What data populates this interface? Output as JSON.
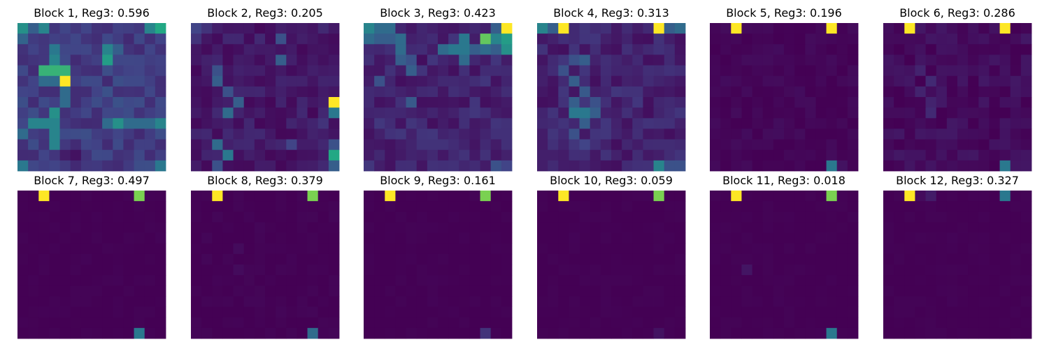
{
  "chart_data": {
    "type": "heatmap",
    "colormap": "viridis",
    "colormap_stops": [
      "#440154",
      "#414487",
      "#2a788e",
      "#22a884",
      "#7ad151",
      "#fde725"
    ],
    "grid_size": [
      14,
      14
    ],
    "axes_visible": false,
    "value_scale": [
      0,
      1
    ],
    "panels": [
      {
        "title": "Block 1, Reg3: 0.596",
        "base": 0.18,
        "variation": 0.06,
        "cells": [
          [
            0,
            0,
            0.5
          ],
          [
            0,
            2,
            0.45
          ],
          [
            0,
            12,
            0.45
          ],
          [
            0,
            13,
            0.6
          ],
          [
            0,
            1,
            0.3
          ],
          [
            1,
            0,
            0.32
          ],
          [
            2,
            3,
            0.4
          ],
          [
            2,
            8,
            0.45
          ],
          [
            3,
            8,
            0.55
          ],
          [
            2,
            9,
            0.3
          ],
          [
            4,
            2,
            0.65
          ],
          [
            4,
            3,
            0.65
          ],
          [
            4,
            4,
            0.65
          ],
          [
            3,
            3,
            0.45
          ],
          [
            5,
            2,
            0.35
          ],
          [
            5,
            4,
            1.0
          ],
          [
            5,
            3,
            0.35
          ],
          [
            6,
            4,
            0.35
          ],
          [
            7,
            4,
            0.35
          ],
          [
            8,
            3,
            0.5
          ],
          [
            9,
            1,
            0.45
          ],
          [
            9,
            2,
            0.45
          ],
          [
            9,
            3,
            0.45
          ],
          [
            9,
            9,
            0.5
          ],
          [
            9,
            8,
            0.35
          ],
          [
            9,
            10,
            0.35
          ],
          [
            9,
            11,
            0.35
          ],
          [
            9,
            12,
            0.35
          ],
          [
            9,
            13,
            0.45
          ],
          [
            10,
            0,
            0.35
          ],
          [
            10,
            3,
            0.45
          ],
          [
            11,
            3,
            0.45
          ],
          [
            12,
            5,
            0.05
          ],
          [
            12,
            4,
            0.08
          ],
          [
            13,
            0,
            0.4
          ],
          [
            13,
            13,
            0.4
          ],
          [
            6,
            8,
            0.25
          ],
          [
            7,
            9,
            0.25
          ]
        ]
      },
      {
        "title": "Block 2, Reg3: 0.205",
        "base": 0.07,
        "variation": 0.05,
        "cells": [
          [
            0,
            0,
            0.2
          ],
          [
            0,
            1,
            0.15
          ],
          [
            1,
            0,
            0.15
          ],
          [
            1,
            8,
            0.25
          ],
          [
            3,
            8,
            0.3
          ],
          [
            4,
            2,
            0.25
          ],
          [
            5,
            2,
            0.3
          ],
          [
            6,
            3,
            0.25
          ],
          [
            7,
            4,
            0.3
          ],
          [
            8,
            3,
            0.35
          ],
          [
            7,
            13,
            1.0
          ],
          [
            8,
            13,
            0.4
          ],
          [
            11,
            2,
            0.35
          ],
          [
            12,
            3,
            0.4
          ],
          [
            12,
            13,
            0.6
          ],
          [
            11,
            13,
            0.25
          ],
          [
            13,
            2,
            0.25
          ],
          [
            13,
            13,
            0.3
          ],
          [
            11,
            9,
            0.2
          ],
          [
            9,
            12,
            0.15
          ]
        ]
      },
      {
        "title": "Block 3, Reg3: 0.423",
        "base": 0.1,
        "variation": 0.06,
        "cells": [
          [
            0,
            0,
            0.45
          ],
          [
            0,
            1,
            0.35
          ],
          [
            0,
            2,
            0.35
          ],
          [
            0,
            13,
            1.0
          ],
          [
            0,
            12,
            0.3
          ],
          [
            1,
            0,
            0.35
          ],
          [
            1,
            1,
            0.3
          ],
          [
            1,
            2,
            0.3
          ],
          [
            1,
            3,
            0.35
          ],
          [
            1,
            9,
            0.4
          ],
          [
            1,
            12,
            0.45
          ],
          [
            1,
            13,
            0.55
          ],
          [
            2,
            3,
            0.35
          ],
          [
            2,
            7,
            0.35
          ],
          [
            2,
            8,
            0.4
          ],
          [
            2,
            9,
            0.4
          ],
          [
            2,
            10,
            0.3
          ],
          [
            2,
            11,
            0.35
          ],
          [
            2,
            13,
            0.5
          ],
          [
            1,
            11,
            0.75
          ],
          [
            2,
            12,
            0.3
          ],
          [
            3,
            9,
            0.35
          ],
          [
            3,
            3,
            0.3
          ],
          [
            4,
            4,
            0.3
          ],
          [
            3,
            4,
            0.25
          ],
          [
            7,
            4,
            0.28
          ],
          [
            13,
            12,
            0.25
          ],
          [
            13,
            13,
            0.2
          ],
          [
            5,
            1,
            0.25
          ]
        ]
      },
      {
        "title": "Block 4, Reg3: 0.313",
        "base": 0.1,
        "variation": 0.06,
        "cells": [
          [
            0,
            0,
            0.45
          ],
          [
            0,
            1,
            0.3
          ],
          [
            0,
            2,
            1.0
          ],
          [
            0,
            11,
            1.0
          ],
          [
            0,
            12,
            0.3
          ],
          [
            0,
            13,
            0.35
          ],
          [
            3,
            4,
            0.3
          ],
          [
            3,
            3,
            0.25
          ],
          [
            4,
            2,
            0.25
          ],
          [
            5,
            3,
            0.3
          ],
          [
            6,
            4,
            0.28
          ],
          [
            7,
            3,
            0.3
          ],
          [
            7,
            5,
            0.25
          ],
          [
            8,
            3,
            0.4
          ],
          [
            8,
            4,
            0.4
          ],
          [
            8,
            5,
            0.3
          ],
          [
            9,
            4,
            0.3
          ],
          [
            10,
            3,
            0.25
          ],
          [
            11,
            4,
            0.2
          ],
          [
            13,
            11,
            0.45
          ],
          [
            13,
            12,
            0.25
          ],
          [
            13,
            13,
            0.25
          ]
        ]
      },
      {
        "title": "Block 5, Reg3: 0.196",
        "base": 0.015,
        "variation": 0.02,
        "cells": [
          [
            0,
            2,
            1.0
          ],
          [
            0,
            11,
            1.0
          ],
          [
            13,
            11,
            0.4
          ],
          [
            13,
            12,
            0.05
          ]
        ]
      },
      {
        "title": "Block 6, Reg3: 0.286",
        "base": 0.03,
        "variation": 0.04,
        "cells": [
          [
            0,
            2,
            1.0
          ],
          [
            0,
            11,
            1.0
          ],
          [
            13,
            11,
            0.4
          ],
          [
            4,
            3,
            0.1
          ],
          [
            5,
            4,
            0.12
          ],
          [
            6,
            3,
            0.1
          ],
          [
            7,
            4,
            0.1
          ],
          [
            8,
            4,
            0.12
          ],
          [
            13,
            12,
            0.06
          ]
        ]
      },
      {
        "title": "Block 7, Reg3: 0.497",
        "base": 0.0,
        "variation": 0.01,
        "cells": [
          [
            0,
            2,
            1.0
          ],
          [
            0,
            11,
            0.8
          ],
          [
            13,
            11,
            0.4
          ]
        ]
      },
      {
        "title": "Block 8, Reg3: 0.379",
        "base": 0.0,
        "variation": 0.015,
        "cells": [
          [
            0,
            2,
            1.0
          ],
          [
            0,
            11,
            0.8
          ],
          [
            13,
            11,
            0.35
          ],
          [
            5,
            4,
            0.03
          ],
          [
            7,
            4,
            0.03
          ]
        ]
      },
      {
        "title": "Block 9, Reg3: 0.161",
        "base": 0.0,
        "variation": 0.01,
        "cells": [
          [
            0,
            2,
            1.0
          ],
          [
            0,
            11,
            0.8
          ],
          [
            13,
            11,
            0.15
          ]
        ]
      },
      {
        "title": "Block 10, Reg3: 0.059",
        "base": 0.0,
        "variation": 0.01,
        "cells": [
          [
            0,
            2,
            1.0
          ],
          [
            0,
            11,
            0.8
          ],
          [
            13,
            11,
            0.05
          ]
        ]
      },
      {
        "title": "Block 11, Reg3: 0.018",
        "base": 0.0,
        "variation": 0.01,
        "cells": [
          [
            0,
            2,
            1.0
          ],
          [
            0,
            11,
            0.8
          ],
          [
            13,
            11,
            0.4
          ],
          [
            7,
            3,
            0.06
          ]
        ]
      },
      {
        "title": "Block 12, Reg3: 0.327",
        "base": 0.0,
        "variation": 0.01,
        "cells": [
          [
            0,
            2,
            1.0
          ],
          [
            0,
            11,
            0.4
          ],
          [
            0,
            3,
            0.03
          ],
          [
            0,
            4,
            0.08
          ]
        ]
      }
    ]
  }
}
